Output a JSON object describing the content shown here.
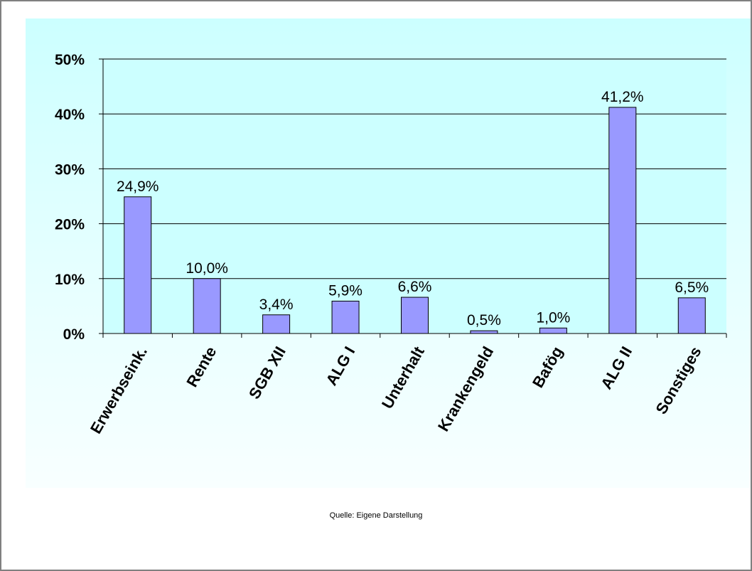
{
  "chart_data": {
    "type": "bar",
    "categories": [
      "Erwerbseink.",
      "Rente",
      "SGB XII",
      "ALG I",
      "Unterhalt",
      "Krankengeld",
      "Bafög",
      "ALG II",
      "Sonstiges"
    ],
    "values": [
      24.9,
      10.0,
      3.4,
      5.9,
      6.6,
      0.5,
      1.0,
      41.2,
      6.5
    ],
    "data_labels": [
      "24,9%",
      "10,0%",
      "3,4%",
      "5,9%",
      "6,6%",
      "0,5%",
      "1,0%",
      "41,2%",
      "6,5%"
    ],
    "y_ticks": [
      0,
      10,
      20,
      30,
      40,
      50
    ],
    "y_tick_labels": [
      "0%",
      "10%",
      "20%",
      "30%",
      "40%",
      "50%"
    ],
    "ylim": [
      0,
      50
    ],
    "title": "",
    "xlabel": "",
    "ylabel": "",
    "grid": true,
    "legend": "none",
    "bar_color": "#9999ff",
    "bar_border_color": "#000000",
    "plot_background": "#ccffff"
  },
  "footer": {
    "source": "Quelle: Eigene Darstellung"
  }
}
